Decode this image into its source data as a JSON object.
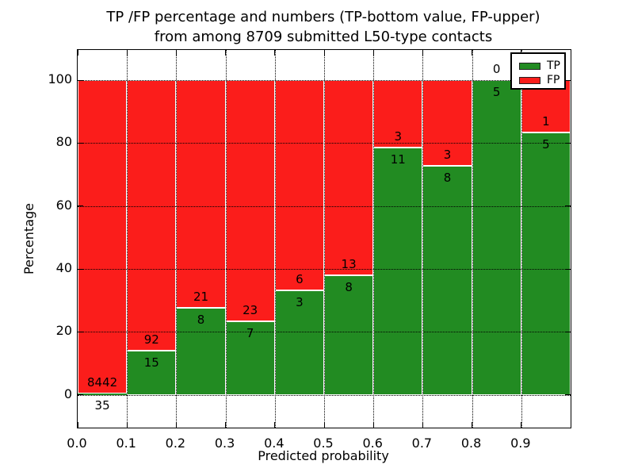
{
  "chart_data": {
    "type": "bar",
    "stacked": true,
    "normalized": "percent",
    "title_line1": "TP /FP percentage and numbers (TP-bottom value, FP-upper)",
    "title_line2": "from among 8709 submitted L50-type contacts",
    "xlabel": "Predicted probability",
    "ylabel": "Percentage",
    "categories": [
      "0.0-0.1",
      "0.1-0.2",
      "0.2-0.3",
      "0.3-0.4",
      "0.4-0.5",
      "0.5-0.6",
      "0.6-0.7",
      "0.7-0.8",
      "0.8-0.9",
      "0.9-1.0"
    ],
    "series": [
      {
        "name": "TP",
        "color": "#228b22",
        "counts": [
          35,
          15,
          8,
          7,
          3,
          8,
          11,
          8,
          5,
          5
        ]
      },
      {
        "name": "FP",
        "color": "#fb1d1b",
        "counts": [
          8442,
          92,
          21,
          23,
          6,
          13,
          3,
          3,
          0,
          1
        ]
      }
    ],
    "bar_edge_color": "#ffffff",
    "xtick_labels": [
      "0.0",
      "0.1",
      "0.2",
      "0.3",
      "0.4",
      "0.5",
      "0.6",
      "0.7",
      "0.8",
      "0.9"
    ],
    "ytick_values": [
      0,
      20,
      40,
      60,
      80,
      100
    ],
    "xlim": [
      0.0,
      1.0
    ],
    "ylim": [
      -10.4,
      109.6
    ],
    "grid": "dotted black, on",
    "legend_position": "upper right"
  }
}
